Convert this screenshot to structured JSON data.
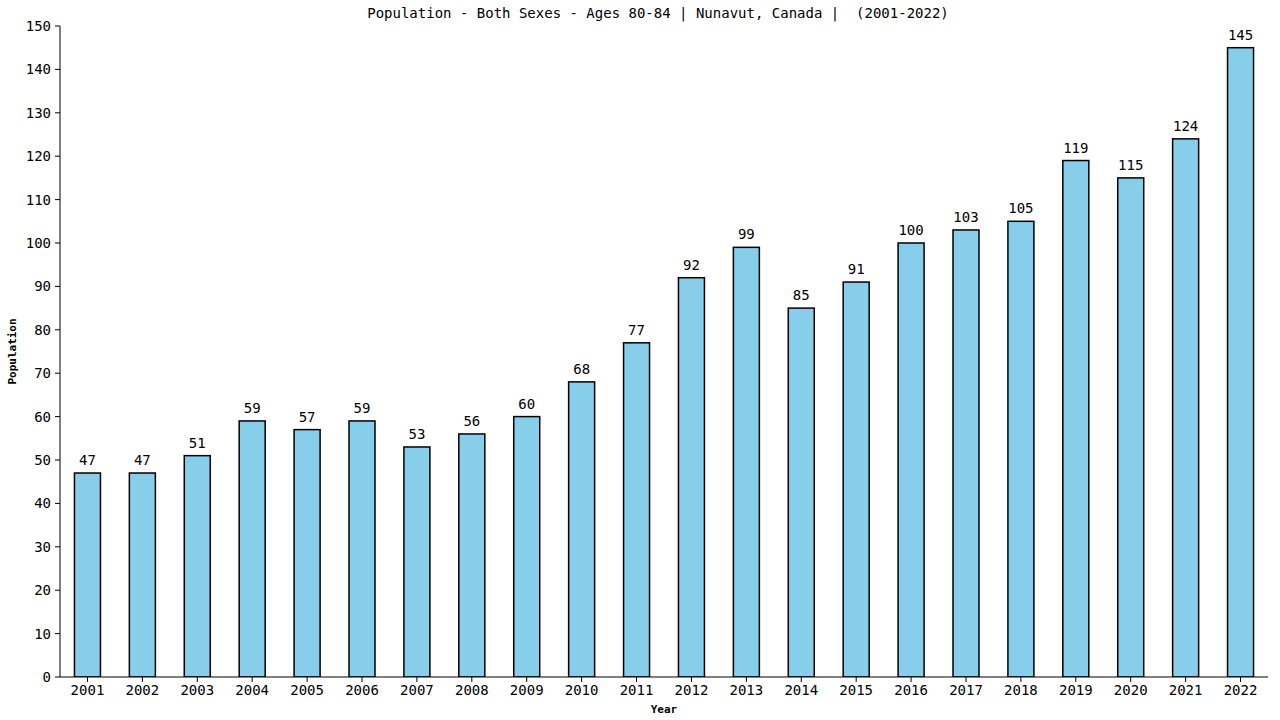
{
  "chart_data": {
    "type": "bar",
    "title": "Population - Both Sexes - Ages 80-84 | Nunavut, Canada |  (2001-2022)",
    "x_label": "Year",
    "y_label": "Population",
    "categories": [
      "2001",
      "2002",
      "2003",
      "2004",
      "2005",
      "2006",
      "2007",
      "2008",
      "2009",
      "2010",
      "2011",
      "2012",
      "2013",
      "2014",
      "2015",
      "2016",
      "2017",
      "2018",
      "2019",
      "2020",
      "2021",
      "2022"
    ],
    "values": [
      47,
      47,
      51,
      59,
      57,
      59,
      53,
      56,
      60,
      68,
      77,
      92,
      99,
      85,
      91,
      100,
      103,
      105,
      119,
      115,
      124,
      145
    ],
    "color": "#87ceeb",
    "ylim": [
      0,
      150
    ],
    "yticks": [
      0,
      10,
      20,
      30,
      40,
      50,
      60,
      70,
      80,
      90,
      100,
      110,
      120,
      130,
      140,
      150
    ],
    "grid": false,
    "data_labels": true
  }
}
